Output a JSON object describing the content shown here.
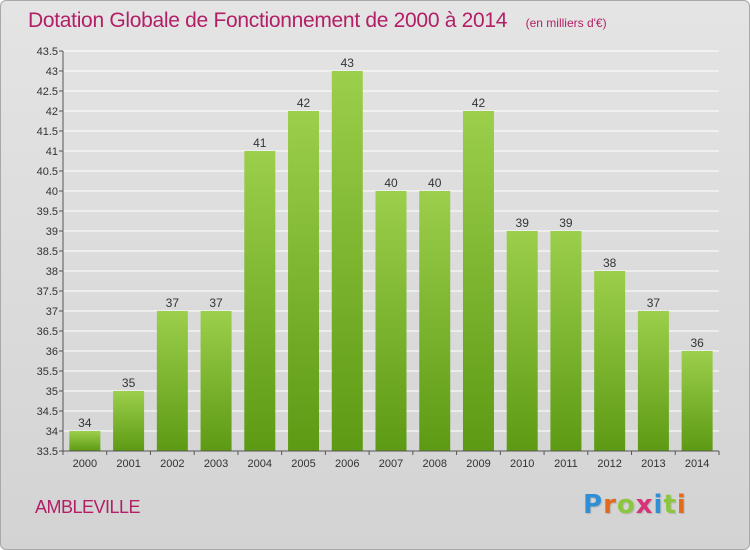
{
  "header": {
    "title": "Dotation Globale de Fonctionnement de 2000 à 2014",
    "unit": "(en milliers d'€)"
  },
  "commune": "AMBLEVILLE",
  "logo": {
    "text": "Proxiti",
    "letter_colors": [
      "#2f8fd6",
      "#e36a1b",
      "#8cc63f",
      "#d8327a",
      "#2f8fd6",
      "#8cc63f",
      "#e36a1b"
    ]
  },
  "colors": {
    "bar_top": "#9ccf4b",
    "bar_bottom": "#5d9a13",
    "grid": "#ffffff",
    "title": "#b21f66"
  },
  "chart_data": {
    "type": "bar",
    "categories": [
      "2000",
      "2001",
      "2002",
      "2003",
      "2004",
      "2005",
      "2006",
      "2007",
      "2008",
      "2009",
      "2010",
      "2011",
      "2012",
      "2013",
      "2014"
    ],
    "values": [
      34,
      35,
      37,
      37,
      41,
      42,
      43,
      40,
      40,
      42,
      39,
      39,
      38,
      37,
      36
    ],
    "ylim": [
      33.5,
      43.5
    ],
    "yticks": [
      "33.5",
      "34",
      "34.5",
      "35",
      "35.5",
      "36",
      "36.5",
      "37",
      "37.5",
      "38",
      "38.5",
      "39",
      "39.5",
      "40",
      "40.5",
      "41",
      "41.5",
      "42",
      "42.5",
      "43",
      "43.5"
    ],
    "grid": true
  }
}
